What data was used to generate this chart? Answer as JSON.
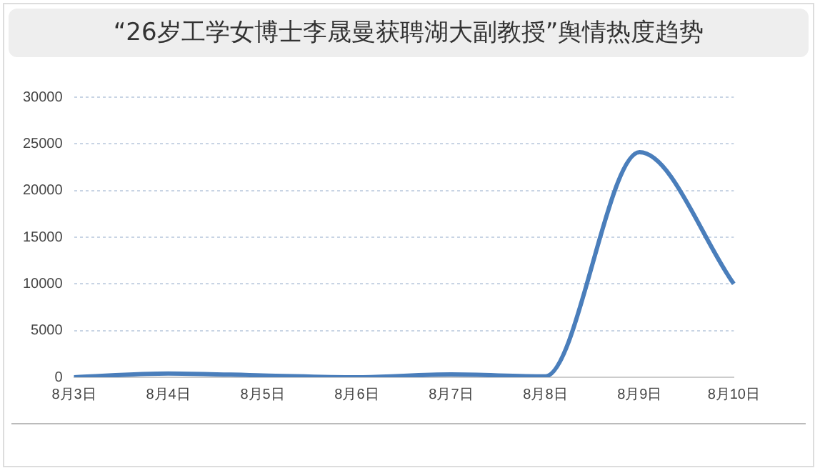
{
  "chart_data": {
    "type": "line",
    "title": "“26岁工学女博士李晟曼获聘湖大副教授”舆情热度趋势",
    "categories": [
      "8月3日",
      "8月4日",
      "8月5日",
      "8月6日",
      "8月7日",
      "8月8日",
      "8月9日",
      "8月10日"
    ],
    "series": [
      {
        "color": "#4a7ebb",
        "values": [
          0,
          400,
          200,
          0,
          300,
          100,
          24100,
          10000
        ]
      }
    ],
    "ylim": [
      0,
      30000
    ],
    "yticks": [
      0,
      5000,
      10000,
      15000,
      20000,
      25000,
      30000
    ],
    "grid": "y",
    "legend": false,
    "marker": "none"
  }
}
